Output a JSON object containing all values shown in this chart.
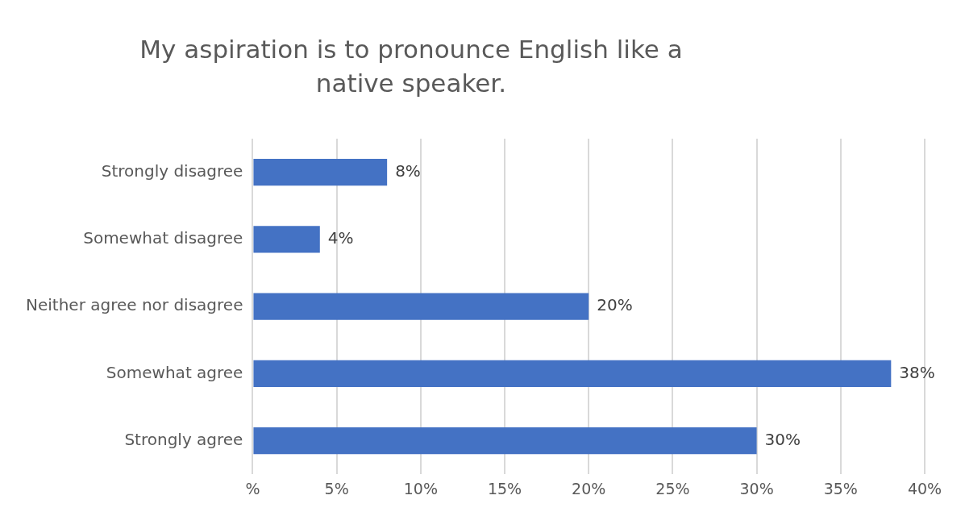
{
  "chart_data": {
    "type": "bar",
    "orientation": "horizontal",
    "title": "My aspiration is to pronounce  English like a native speaker.",
    "categories": [
      "Strongly disagree",
      "Somewhat disagree",
      "Neither agree nor disagree",
      "Somewhat agree",
      "Strongly agree"
    ],
    "values": [
      8,
      4,
      20,
      38,
      30
    ],
    "value_labels": [
      "8%",
      "4%",
      "20%",
      "38%",
      "30%"
    ],
    "color": "#4472c4",
    "xlim": [
      0,
      40
    ],
    "xticks": [
      {
        "value": 0,
        "label": "%"
      },
      {
        "value": 5,
        "label": "5%"
      },
      {
        "value": 10,
        "label": "10%"
      },
      {
        "value": 15,
        "label": "15%"
      },
      {
        "value": 20,
        "label": "20%"
      },
      {
        "value": 25,
        "label": "25%"
      },
      {
        "value": 30,
        "label": "30%"
      },
      {
        "value": 35,
        "label": "35%"
      },
      {
        "value": 40,
        "label": "40%"
      }
    ],
    "grid": "x",
    "legend": false
  }
}
